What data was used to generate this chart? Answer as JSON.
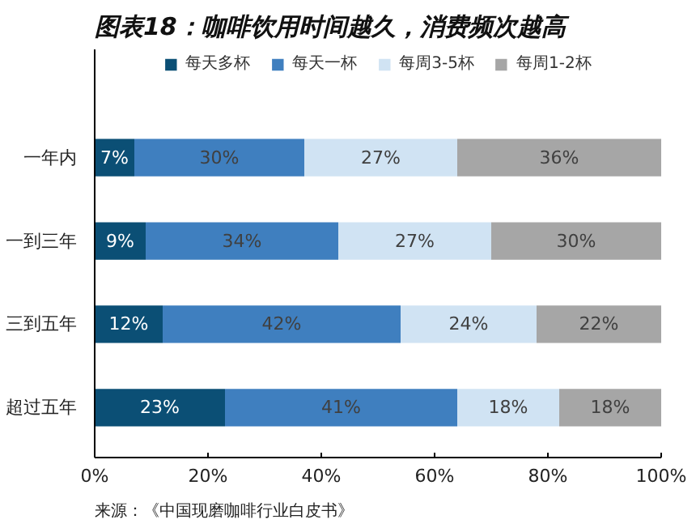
{
  "chart_data": {
    "type": "bar",
    "orientation": "horizontal",
    "stacked": true,
    "title": "图表18：咖啡饮用时间越久，消费频次越高",
    "categories": [
      "一年内",
      "一到三年",
      "三到五年",
      "超过五年"
    ],
    "series": [
      {
        "name": "每天多杯",
        "color": "#0b4f75",
        "values": [
          7,
          9,
          12,
          23
        ],
        "value_labels": [
          "7%",
          "9%",
          "12%",
          "23%"
        ]
      },
      {
        "name": "每天一杯",
        "color": "#3f7fbf",
        "values": [
          30,
          34,
          42,
          41
        ],
        "value_labels": [
          "30%",
          "34%",
          "42%",
          "41%"
        ]
      },
      {
        "name": "每周3-5杯",
        "color": "#d0e3f3",
        "values": [
          27,
          27,
          24,
          18
        ],
        "value_labels": [
          "27%",
          "27%",
          "24%",
          "18%"
        ]
      },
      {
        "name": "每周1-2杯",
        "color": "#a6a6a6",
        "values": [
          36,
          30,
          22,
          18
        ],
        "value_labels": [
          "36%",
          "30%",
          "22%",
          "18%"
        ]
      }
    ],
    "xlim": [
      0,
      100
    ],
    "xticks": [
      {
        "value": 0,
        "label": "0%"
      },
      {
        "value": 20,
        "label": "20%"
      },
      {
        "value": 40,
        "label": "40%"
      },
      {
        "value": 60,
        "label": "60%"
      },
      {
        "value": 80,
        "label": "80%"
      },
      {
        "value": 100,
        "label": "100%"
      }
    ],
    "legend": "top",
    "grid": false,
    "annotations": [
      "来源：《中国现磨咖啡行业白皮书》"
    ]
  }
}
